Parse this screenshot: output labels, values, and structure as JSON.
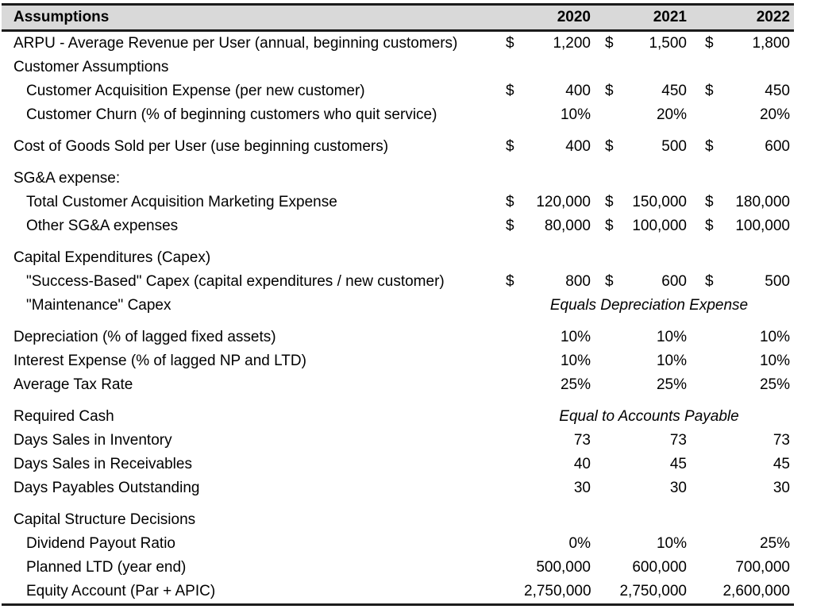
{
  "currency_symbol": "$",
  "colors": {
    "header_bg": "#d9d9d9",
    "border": "#1b1b1b",
    "text": "#000000"
  },
  "header": {
    "label": "Assumptions",
    "years": [
      "2020",
      "2021",
      "2022"
    ]
  },
  "rows": [
    {
      "type": "currency",
      "indent": 0,
      "label": "ARPU - Average Revenue per User (annual, beginning customers)",
      "values": [
        "1,200",
        "1,500",
        "1,800"
      ]
    },
    {
      "type": "label",
      "indent": 0,
      "label": "Customer Assumptions"
    },
    {
      "type": "currency",
      "indent": 1,
      "label": "Customer Acquisition Expense (per new customer)",
      "values": [
        "400",
        "450",
        "450"
      ]
    },
    {
      "type": "number",
      "indent": 1,
      "label": "Customer Churn (% of beginning customers who quit service)",
      "values": [
        "10%",
        "20%",
        "20%"
      ]
    },
    {
      "type": "spacer"
    },
    {
      "type": "currency",
      "indent": 0,
      "label": "Cost of Goods Sold per User (use beginning customers)",
      "values": [
        "400",
        "500",
        "600"
      ]
    },
    {
      "type": "spacer"
    },
    {
      "type": "label",
      "indent": 0,
      "label": "SG&A expense:"
    },
    {
      "type": "currency",
      "indent": 1,
      "label": "Total Customer Acquisition Marketing Expense",
      "values": [
        "120,000",
        "150,000",
        "180,000"
      ]
    },
    {
      "type": "currency",
      "indent": 1,
      "label": "Other SG&A expenses",
      "values": [
        "80,000",
        "100,000",
        "100,000"
      ]
    },
    {
      "type": "spacer"
    },
    {
      "type": "label",
      "indent": 0,
      "label": "Capital Expenditures (Capex)"
    },
    {
      "type": "currency",
      "indent": 1,
      "label": "\"Success-Based\" Capex (capital expenditures / new customer)",
      "values": [
        "800",
        "600",
        "500"
      ]
    },
    {
      "type": "note",
      "indent": 1,
      "label": "\"Maintenance\" Capex",
      "note": "Equals Depreciation Expense"
    },
    {
      "type": "spacer"
    },
    {
      "type": "number",
      "indent": 0,
      "label": "Depreciation (% of lagged fixed assets)",
      "values": [
        "10%",
        "10%",
        "10%"
      ]
    },
    {
      "type": "number",
      "indent": 0,
      "label": "Interest Expense (% of lagged NP and LTD)",
      "values": [
        "10%",
        "10%",
        "10%"
      ]
    },
    {
      "type": "number",
      "indent": 0,
      "label": "Average Tax Rate",
      "values": [
        "25%",
        "25%",
        "25%"
      ]
    },
    {
      "type": "spacer"
    },
    {
      "type": "note",
      "indent": 0,
      "label": "Required Cash",
      "note": "Equal to Accounts Payable"
    },
    {
      "type": "number",
      "indent": 0,
      "label": "Days Sales in Inventory",
      "values": [
        "73",
        "73",
        "73"
      ]
    },
    {
      "type": "number",
      "indent": 0,
      "label": "Days Sales in Receivables",
      "values": [
        "40",
        "45",
        "45"
      ]
    },
    {
      "type": "number",
      "indent": 0,
      "label": "Days Payables Outstanding",
      "values": [
        "30",
        "30",
        "30"
      ]
    },
    {
      "type": "spacer"
    },
    {
      "type": "label",
      "indent": 0,
      "label": "Capital Structure Decisions"
    },
    {
      "type": "number",
      "indent": 1,
      "label": "Dividend Payout Ratio",
      "values": [
        "0%",
        "10%",
        "25%"
      ]
    },
    {
      "type": "number",
      "indent": 1,
      "label": "Planned LTD (year end)",
      "values": [
        "500,000",
        "600,000",
        "700,000"
      ]
    },
    {
      "type": "number",
      "indent": 1,
      "label": "Equity Account (Par + APIC)",
      "values": [
        "2,750,000",
        "2,750,000",
        "2,600,000"
      ]
    }
  ]
}
